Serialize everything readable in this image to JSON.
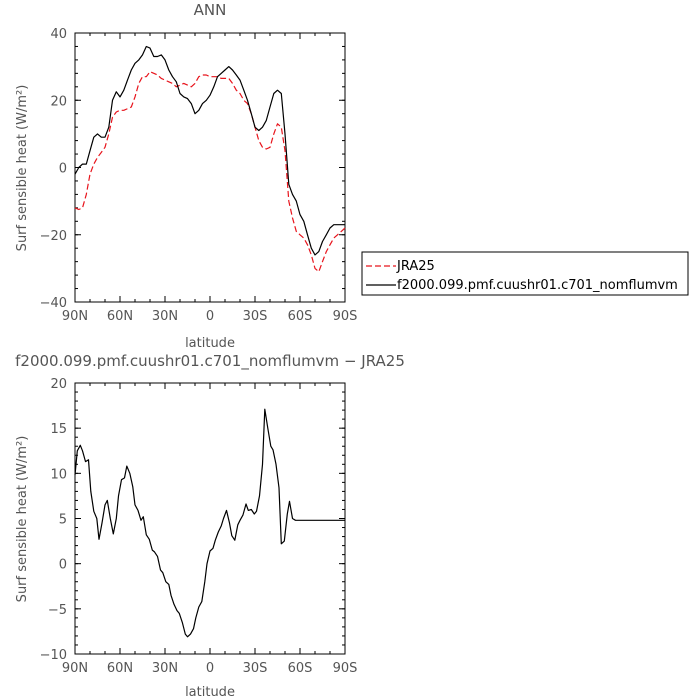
{
  "chart_data": [
    {
      "type": "line",
      "title": "ANN",
      "xlabel": "latitude",
      "ylabel": "Surf sensible heat (W/m²)",
      "ylim": [
        -40,
        40
      ],
      "xlim": [
        90,
        -90
      ],
      "x_ticks": [
        90,
        60,
        30,
        0,
        -30,
        -60,
        -90
      ],
      "x_tick_labels": [
        "90N",
        "60N",
        "30N",
        "0",
        "30S",
        "60S",
        "90S"
      ],
      "y_ticks": [
        -40,
        -20,
        0,
        20,
        40
      ],
      "y_tick_labels": [
        "−40",
        "−20",
        "0",
        "20",
        "40"
      ],
      "legend": "right",
      "series": [
        {
          "name": "JRA25",
          "color": "#e8141c",
          "dash": "dashed",
          "x": [
            90,
            87.5,
            85,
            82.5,
            80,
            77.5,
            75,
            72.5,
            70,
            67.5,
            65,
            62.5,
            60,
            57.5,
            55,
            52.5,
            50,
            47.5,
            45,
            42.5,
            40,
            37.5,
            35,
            32.5,
            30,
            27.5,
            25,
            22.5,
            20,
            17.5,
            15,
            12.5,
            10,
            7.5,
            5,
            2.5,
            0,
            -2.5,
            -5,
            -7.5,
            -10,
            -12.5,
            -15,
            -17.5,
            -20,
            -22.5,
            -25,
            -27.5,
            -30,
            -32.5,
            -35,
            -37.5,
            -40,
            -42.5,
            -45,
            -47.5,
            -50,
            -52.5,
            -55,
            -57.5,
            -60,
            -62.5,
            -65,
            -67.5,
            -70,
            -72.5,
            -75,
            -77.5,
            -80,
            -82.5,
            -85,
            -87.5,
            -90
          ],
          "values": [
            -12,
            -12.5,
            -12,
            -8,
            -2,
            1,
            3,
            4.5,
            6,
            10,
            15,
            16.5,
            17,
            17,
            17.5,
            18,
            21,
            25,
            27,
            27,
            28.5,
            28,
            27.5,
            26.5,
            26,
            25.5,
            25,
            24,
            24.5,
            25,
            24.5,
            24,
            25,
            27,
            27.5,
            27.5,
            27,
            27,
            27,
            26.5,
            26.5,
            26.5,
            25,
            23,
            22,
            20,
            19,
            16,
            12,
            8,
            6,
            5.5,
            6,
            10,
            13,
            12,
            5,
            -10,
            -15,
            -19,
            -20,
            -21,
            -23,
            -26,
            -30,
            -31,
            -28,
            -25,
            -23,
            -21,
            -20,
            -19,
            -18
          ]
        },
        {
          "name": "f2000.099.pmf.cuushr01.c701_nomflumvm",
          "color": "#000000",
          "dash": "solid",
          "x": [
            90,
            87.5,
            85,
            82.5,
            80,
            77.5,
            75,
            72.5,
            70,
            67.5,
            65,
            62.5,
            60,
            57.5,
            55,
            52.5,
            50,
            47.5,
            45,
            42.5,
            40,
            37.5,
            35,
            32.5,
            30,
            27.5,
            25,
            22.5,
            20,
            17.5,
            15,
            12.5,
            10,
            7.5,
            5,
            2.5,
            0,
            -2.5,
            -5,
            -7.5,
            -10,
            -12.5,
            -15,
            -17.5,
            -20,
            -22.5,
            -25,
            -27.5,
            -30,
            -32.5,
            -35,
            -37.5,
            -40,
            -42.5,
            -45,
            -47.5,
            -50,
            -52.5,
            -55,
            -57.5,
            -60,
            -62.5,
            -65,
            -67.5,
            -70,
            -72.5,
            -75,
            -77.5,
            -80,
            -82.5,
            -85,
            -87.5,
            -90
          ],
          "values": [
            -2,
            0,
            1,
            1,
            5,
            9,
            10,
            9,
            9,
            12,
            20,
            22.5,
            21,
            23,
            26,
            29,
            31,
            32,
            33.5,
            36,
            35.5,
            33,
            33,
            33.5,
            32,
            29,
            27,
            25.5,
            22,
            21,
            20.5,
            19,
            16,
            17,
            19,
            20,
            21.5,
            24,
            27,
            28,
            29,
            30,
            29,
            27.5,
            26,
            23,
            20,
            16,
            12,
            11,
            12,
            14,
            18,
            22,
            23,
            22,
            10,
            -5,
            -8,
            -10,
            -14,
            -16,
            -20,
            -24,
            -26,
            -25,
            -22,
            -20,
            -18,
            -17,
            -17,
            -17,
            -17
          ]
        }
      ]
    },
    {
      "type": "line",
      "title": "f2000.099.pmf.cuushr01.c701_nomflumvm − JRA25",
      "xlabel": "latitude",
      "ylabel": "Surf sensible heat (W/m²)",
      "ylim": [
        -10,
        20
      ],
      "xlim": [
        90,
        -90
      ],
      "x_ticks": [
        90,
        60,
        30,
        0,
        -30,
        -60,
        -90
      ],
      "x_tick_labels": [
        "90N",
        "60N",
        "30N",
        "0",
        "30S",
        "60S",
        "90S"
      ],
      "y_ticks": [
        -10,
        -5,
        0,
        5,
        10,
        15,
        20
      ],
      "y_tick_labels": [
        "−10",
        "−5",
        "0",
        "5",
        "10",
        "15",
        "20"
      ],
      "series": [
        {
          "color": "#000000",
          "dash": "solid",
          "x": [
            90,
            88.5,
            86.5,
            85,
            83,
            81,
            79.5,
            77.5,
            75.5,
            74,
            72,
            70,
            68.5,
            66.5,
            64.5,
            62.5,
            61,
            59,
            57,
            55.5,
            53.5,
            51.5,
            50,
            48,
            46,
            44.5,
            42.5,
            40.5,
            38.5,
            37,
            35,
            33,
            31.5,
            29.5,
            27.5,
            26,
            24,
            22,
            20.5,
            18.5,
            16.5,
            15,
            13,
            11,
            9.5,
            7.5,
            5.5,
            3.5,
            2,
            0,
            -2,
            -3.5,
            -5.5,
            -7.5,
            -9,
            -11,
            -13,
            -14.5,
            -16.5,
            -18.5,
            -20,
            -22,
            -24,
            -25.5,
            -27.5,
            -29.5,
            -31,
            -33,
            -35,
            -36.5,
            -38.5,
            -40.5,
            -42,
            -44,
            -46,
            -47.5,
            -49.5,
            -51.5,
            -53,
            -55,
            -57,
            -58.5,
            -60.5,
            -62.5,
            -64.5,
            -66,
            -68,
            -70,
            -71.5,
            -73.5,
            -75.5,
            -77,
            -79,
            -81,
            -82.5,
            -84.5,
            -86.5,
            -88,
            -90
          ],
          "values": [
            9.8,
            12.5,
            13.1,
            12.5,
            11.3,
            11.5,
            8,
            5.8,
            5,
            2.7,
            4.5,
            6.5,
            7,
            5,
            3.3,
            5,
            7.5,
            9.3,
            9.5,
            10.8,
            10,
            8.5,
            6.5,
            5.9,
            4.8,
            5.2,
            3.2,
            2.7,
            1.5,
            1.3,
            0.8,
            -0.7,
            -1,
            -2,
            -2.3,
            -3.5,
            -4.5,
            -5.2,
            -5.5,
            -6.5,
            -7.8,
            -8.1,
            -7.8,
            -7.2,
            -6,
            -4.8,
            -4.2,
            -2,
            0,
            1.4,
            1.7,
            2.6,
            3.5,
            4.2,
            5,
            5.9,
            4.5,
            3.1,
            2.6,
            4.3,
            4.8,
            5.4,
            6.6,
            5.9,
            6,
            5.5,
            5.8,
            7.5,
            11,
            17.1,
            15,
            13,
            12.6,
            11,
            8.4,
            2.2,
            2.5,
            5.5,
            6.9,
            5,
            4.8,
            4.8,
            4.8,
            4.8,
            4.8,
            4.8,
            4.8,
            4.8,
            4.8,
            4.8,
            4.8,
            4.8,
            4.8,
            4.8,
            4.8,
            4.8,
            4.8,
            4.8,
            4.8
          ]
        }
      ]
    }
  ]
}
